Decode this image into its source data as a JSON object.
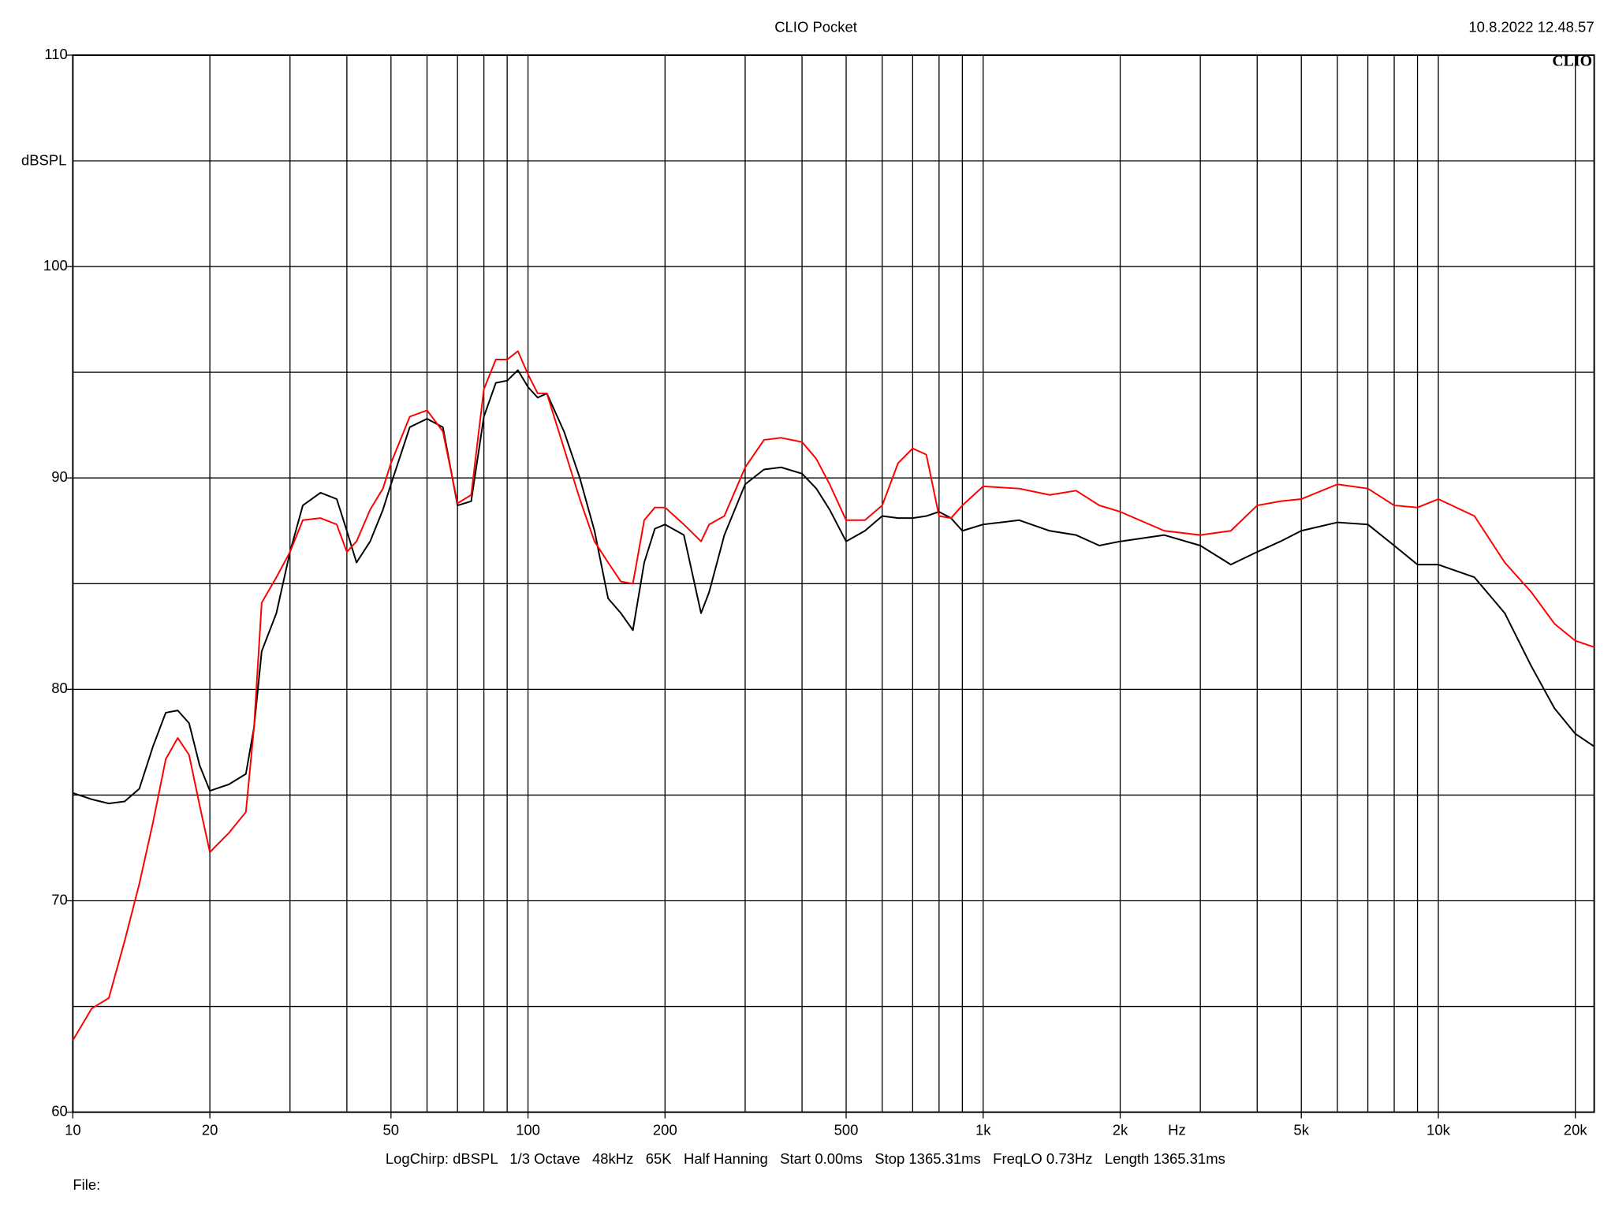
{
  "chart_data": {
    "type": "line",
    "title": "CLIO Pocket",
    "timestamp": "10.8.2022 12.48.57",
    "logo": "CLIO",
    "y_label": "dBSPL",
    "x_label": "Hz",
    "info": "LogChirp: dBSPL   1/3 Octave   48kHz   65K   Half Hanning   Start 0.00ms   Stop 1365.31ms   FreqLO 0.73Hz   Length 1365.31ms",
    "file_label": "File:",
    "x_log": true,
    "grid": true,
    "xlim": [
      10,
      22000
    ],
    "ylim": [
      60,
      110
    ],
    "xticks": [
      10,
      20,
      50,
      100,
      200,
      500,
      {
        "value": 1000,
        "label": "1k"
      },
      {
        "value": 2000,
        "label": "2k"
      },
      {
        "value": 5000,
        "label": "5k"
      },
      {
        "value": 10000,
        "label": "10k"
      },
      {
        "value": 20000,
        "label": "20k"
      }
    ],
    "yticks": [
      60,
      70,
      80,
      90,
      100,
      110
    ],
    "xgrid": [
      10,
      20,
      30,
      40,
      50,
      60,
      70,
      80,
      90,
      100,
      200,
      300,
      400,
      500,
      600,
      700,
      800,
      900,
      1000,
      2000,
      3000,
      4000,
      5000,
      6000,
      7000,
      8000,
      9000,
      10000,
      20000
    ],
    "ygrid": [
      60,
      65,
      70,
      75,
      80,
      85,
      90,
      95,
      100,
      105,
      110
    ],
    "x": [
      10,
      11,
      12,
      13,
      14,
      15,
      16,
      17,
      18,
      19,
      20,
      22,
      24,
      25,
      26,
      28,
      30,
      32,
      35,
      38,
      40,
      42,
      45,
      48,
      50,
      55,
      60,
      65,
      70,
      75,
      80,
      85,
      90,
      95,
      100,
      105,
      110,
      120,
      130,
      140,
      150,
      160,
      170,
      180,
      190,
      200,
      220,
      240,
      250,
      270,
      300,
      330,
      360,
      400,
      430,
      460,
      500,
      550,
      600,
      650,
      700,
      750,
      800,
      850,
      900,
      1000,
      1200,
      1400,
      1600,
      1800,
      2000,
      2500,
      3000,
      3500,
      4000,
      4500,
      5000,
      6000,
      7000,
      8000,
      9000,
      10000,
      12000,
      14000,
      16000,
      18000,
      20000,
      22000
    ],
    "series": [
      {
        "color": "#000000",
        "values": [
          75.1,
          74.8,
          74.6,
          74.7,
          75.3,
          77.3,
          78.9,
          79.0,
          78.4,
          76.4,
          75.2,
          75.5,
          76.0,
          78.2,
          81.8,
          83.6,
          86.5,
          88.7,
          89.3,
          89.0,
          87.5,
          86.0,
          87.0,
          88.5,
          89.7,
          92.4,
          92.8,
          92.4,
          88.7,
          88.9,
          92.9,
          94.5,
          94.6,
          95.1,
          94.3,
          93.8,
          94.0,
          92.2,
          90.0,
          87.5,
          84.3,
          83.6,
          82.8,
          86.0,
          87.6,
          87.8,
          87.3,
          83.6,
          84.6,
          87.3,
          89.7,
          90.4,
          90.5,
          90.2,
          89.5,
          88.5,
          87.0,
          87.5,
          88.2,
          88.1,
          88.1,
          88.2,
          88.4,
          88.1,
          87.5,
          87.8,
          88.0,
          87.5,
          87.3,
          86.8,
          87.0,
          87.3,
          86.8,
          85.9,
          86.5,
          87.0,
          87.5,
          87.9,
          87.8,
          86.8,
          85.9,
          85.9,
          85.3,
          83.6,
          81.1,
          79.1,
          77.9,
          77.3
        ]
      },
      {
        "color": "#ff0000",
        "values": [
          63.4,
          64.9,
          65.4,
          68.1,
          70.8,
          73.7,
          76.7,
          77.7,
          76.9,
          74.5,
          72.3,
          73.2,
          74.2,
          78.2,
          84.1,
          85.3,
          86.5,
          88.0,
          88.1,
          87.8,
          86.5,
          87.0,
          88.5,
          89.5,
          90.7,
          92.9,
          93.2,
          92.2,
          88.8,
          89.2,
          94.2,
          95.6,
          95.6,
          96.0,
          94.9,
          94.0,
          94.0,
          91.4,
          89.0,
          87.0,
          86.0,
          85.1,
          85.0,
          88.0,
          88.6,
          88.6,
          87.8,
          87.0,
          87.8,
          88.2,
          90.5,
          91.8,
          91.9,
          91.7,
          90.9,
          89.7,
          88.0,
          88.0,
          88.7,
          90.7,
          91.4,
          91.1,
          88.2,
          88.1,
          88.7,
          89.6,
          89.5,
          89.2,
          89.4,
          88.7,
          88.4,
          87.5,
          87.3,
          87.5,
          88.7,
          88.9,
          89.0,
          89.7,
          89.5,
          88.7,
          88.6,
          89.0,
          88.2,
          86.0,
          84.6,
          83.1,
          82.3,
          82.0
        ]
      }
    ]
  }
}
